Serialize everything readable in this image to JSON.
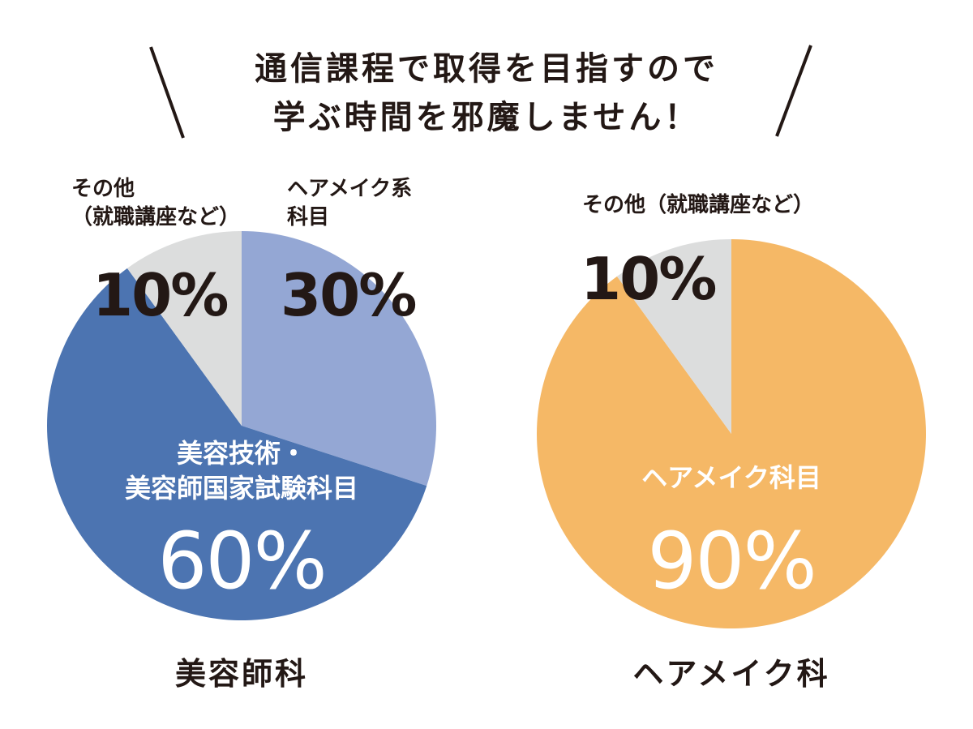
{
  "heading": {
    "line1": "通信課程で取得を目指すので",
    "line2": "学ぶ時間を邪魔しません！"
  },
  "chart_data": [
    {
      "type": "pie",
      "caption": "美容師科",
      "slices": [
        {
          "label_lines": [
            "ヘアメイク系",
            "科目"
          ],
          "value": 30,
          "value_text": "30%",
          "color": "#94a7d4"
        },
        {
          "label_lines": [
            "美容技術・",
            "美容師国家試験科目"
          ],
          "value": 60,
          "value_text": "60%",
          "color": "#4c74b1"
        },
        {
          "label_lines": [
            "その他",
            "（就職講座など）"
          ],
          "value": 10,
          "value_text": "10%",
          "color": "#dcdddd"
        }
      ]
    },
    {
      "type": "pie",
      "caption": "ヘアメイク科",
      "slices": [
        {
          "label_lines": [
            "ヘアメイク科目"
          ],
          "value": 90,
          "value_text": "90%",
          "color": "#f5b866"
        },
        {
          "label_lines": [
            "その他（就職講座など）"
          ],
          "value": 10,
          "value_text": "10%",
          "color": "#dcdddd"
        }
      ]
    }
  ]
}
